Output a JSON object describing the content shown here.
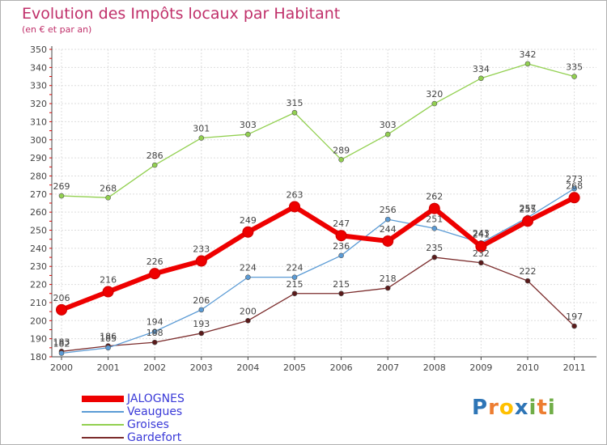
{
  "chart_data": {
    "type": "line",
    "title": "Evolution des Impôts locaux par Habitant",
    "subtitle": "(en € et par an)",
    "x": [
      "2000",
      "2001",
      "2002",
      "2003",
      "2004",
      "2005",
      "2006",
      "2007",
      "2008",
      "2009",
      "2010",
      "2011"
    ],
    "ylim": [
      180,
      350
    ],
    "yticks": [
      180,
      190,
      200,
      210,
      220,
      230,
      240,
      250,
      260,
      270,
      280,
      290,
      300,
      310,
      320,
      330,
      340,
      350
    ],
    "grid": true,
    "legend_position": "bottom-left",
    "series": [
      {
        "name": "JALOGNES",
        "color": "#ee0000",
        "values": [
          206,
          216,
          226,
          233,
          249,
          263,
          247,
          244,
          262,
          241,
          255,
          268
        ]
      },
      {
        "name": "Veaugues",
        "color": "#5b9bd5",
        "values": [
          182,
          185,
          194,
          206,
          224,
          224,
          236,
          256,
          251,
          243,
          257,
          273
        ]
      },
      {
        "name": "Groises",
        "color": "#92d050",
        "values": [
          269,
          268,
          286,
          301,
          303,
          315,
          289,
          303,
          320,
          334,
          342,
          335
        ]
      },
      {
        "name": "Gardefort",
        "color": "#7b2c2c",
        "values": [
          183,
          186,
          188,
          193,
          200,
          215,
          215,
          218,
          235,
          232,
          222,
          197
        ]
      }
    ]
  },
  "logo": {
    "text": "Proxiti",
    "letters": [
      "P",
      "r",
      "o",
      "x",
      "i",
      "t",
      "i"
    ],
    "colors": [
      "#2e75b6",
      "#ed7d31",
      "#ffc000",
      "#2e75b6",
      "#70ad47",
      "#ed7d31",
      "#70ad47"
    ]
  }
}
